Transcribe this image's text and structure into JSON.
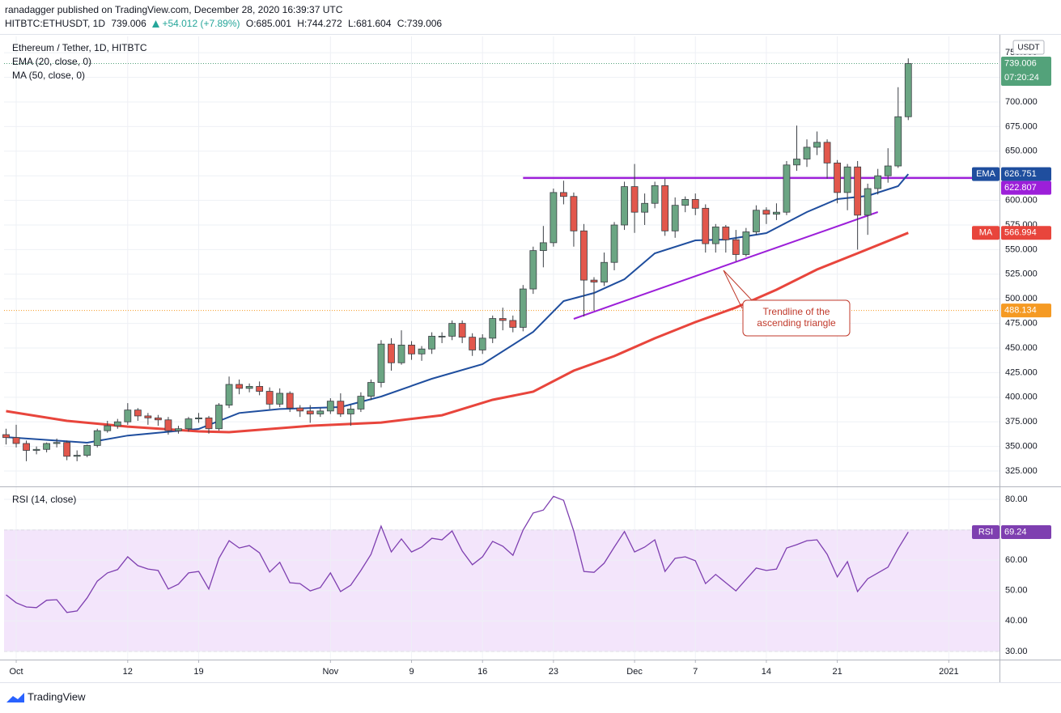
{
  "header": {
    "published": "ranadagger published on TradingView.com, December 28, 2020 16:39:37 UTC",
    "symbol": "HITBTC:ETHUSDT, 1D",
    "change": "+54.012 (+7.89%)",
    "ohlc": [
      "O:685.001",
      "H:744.272",
      "L:681.604",
      "C:739.006"
    ]
  },
  "footer": {
    "brand": "TradingView"
  },
  "chart_data": [
    {
      "type": "candlestick",
      "title": "Ethereum / Tether, 1D, HITBTC",
      "unit": "USDT",
      "countdown": "07:20:24",
      "categories": [
        null,
        null,
        null,
        null,
        null,
        null,
        null,
        null,
        null,
        null,
        null,
        null,
        null,
        null,
        null,
        null,
        null,
        null,
        null,
        null,
        null,
        null,
        null,
        null,
        null,
        null,
        null,
        null,
        null,
        null,
        null,
        null,
        null,
        null,
        null,
        null,
        null,
        null,
        null,
        null,
        null,
        null,
        null,
        null,
        null,
        null,
        null,
        null,
        null,
        null,
        null,
        null,
        null,
        null,
        null,
        null,
        null,
        null,
        null,
        null,
        null,
        null,
        null,
        null,
        null,
        null,
        null,
        null,
        null,
        null,
        null,
        null,
        null,
        null,
        null,
        null,
        null,
        null,
        null,
        null,
        null,
        null,
        null,
        null,
        null,
        null,
        null,
        null,
        null,
        null
      ],
      "open": [
        362,
        359,
        353,
        346,
        347,
        353,
        354,
        340,
        341,
        351,
        366,
        371,
        375,
        387,
        381,
        379,
        377,
        366,
        368,
        378,
        379,
        368,
        392,
        413,
        409,
        411,
        406,
        393,
        404,
        389,
        386,
        383,
        386,
        396,
        383,
        388,
        401,
        415,
        454,
        435,
        453,
        444,
        449,
        462,
        462,
        475,
        461,
        448,
        460,
        480,
        478,
        471,
        510,
        549,
        557,
        608,
        604,
        569,
        519,
        517,
        537,
        575,
        614,
        588,
        597,
        615,
        569,
        595,
        601,
        592,
        556,
        573,
        560,
        545,
        568,
        590,
        586,
        588,
        636,
        642,
        654,
        659,
        638,
        608,
        634,
        585,
        612,
        625,
        635,
        685.001
      ],
      "high": [
        368,
        372,
        356,
        350,
        354,
        358,
        356,
        346,
        352,
        368,
        376,
        378,
        394,
        389,
        384,
        382,
        380,
        371,
        380,
        384,
        381,
        394,
        421,
        418,
        414,
        416,
        410,
        409,
        406,
        392,
        392,
        389,
        399,
        404,
        392,
        405,
        418,
        458,
        460,
        468,
        457,
        452,
        466,
        466,
        478,
        478,
        465,
        464,
        483,
        491,
        483,
        514,
        553,
        574,
        612,
        620,
        608,
        576,
        522,
        547,
        578,
        619,
        637,
        607,
        619,
        622,
        603,
        604,
        607,
        596,
        576,
        575,
        570,
        572,
        595,
        593,
        597,
        640,
        676,
        662,
        670,
        662,
        641,
        637,
        640,
        617,
        632,
        653,
        715,
        744.272
      ],
      "low": [
        352,
        349,
        335,
        342,
        344,
        349,
        336,
        335,
        339,
        349,
        364,
        368,
        372,
        376,
        372,
        371,
        362,
        363,
        365,
        374,
        363,
        366,
        389,
        403,
        405,
        402,
        388,
        390,
        385,
        380,
        374,
        380,
        383,
        380,
        371,
        385,
        397,
        410,
        427,
        433,
        438,
        437,
        444,
        455,
        458,
        455,
        442,
        444,
        455,
        468,
        466,
        467,
        505,
        532,
        553,
        596,
        553,
        482,
        488,
        513,
        529,
        570,
        567,
        575,
        592,
        564,
        562,
        588,
        585,
        547,
        547,
        547,
        538,
        543,
        565,
        576,
        580,
        585,
        630,
        634,
        646,
        622,
        597,
        590,
        550,
        565,
        606,
        618,
        633,
        681.604
      ],
      "close": [
        359,
        353,
        346,
        347,
        353,
        354,
        340,
        341,
        351,
        366,
        371,
        375,
        387,
        381,
        379,
        377,
        366,
        368,
        378,
        379,
        368,
        392,
        413,
        409,
        411,
        406,
        393,
        404,
        389,
        386,
        383,
        386,
        396,
        383,
        388,
        401,
        415,
        454,
        435,
        453,
        444,
        449,
        462,
        462,
        475,
        461,
        448,
        460,
        480,
        478,
        471,
        510,
        549,
        557,
        608,
        604,
        569,
        519,
        517,
        537,
        575,
        614,
        588,
        597,
        615,
        569,
        595,
        601,
        592,
        556,
        573,
        560,
        545,
        568,
        590,
        586,
        588,
        636,
        642,
        654,
        659,
        638,
        608,
        634,
        585,
        612,
        625,
        635,
        685,
        739.006
      ],
      "up_color": "#6ba583",
      "down_color": "#e2574c",
      "last_color": "#53a27a",
      "series": [
        {
          "name": "EMA (20, close, 0)",
          "badge": "EMA",
          "color": "#1f4e9e",
          "x": [
            0,
            8,
            12,
            19,
            23,
            27,
            33,
            37,
            42,
            47,
            52,
            55,
            58,
            61,
            64,
            68,
            71,
            75,
            79,
            82,
            85,
            88,
            89
          ],
          "values": [
            359.5,
            353.8,
            361,
            367.8,
            384,
            388,
            390,
            400.7,
            418.8,
            433.6,
            466.4,
            497.7,
            505.9,
            519.9,
            546.2,
            559.4,
            560.2,
            566.8,
            588.2,
            601.3,
            604.6,
            614.5,
            626.751
          ]
        },
        {
          "name": "MA (50, close, 0)",
          "badge": "MA",
          "color": "#e8453c",
          "x": [
            0,
            6,
            12,
            19,
            22,
            30,
            37,
            43,
            48,
            52,
            56,
            60,
            64,
            68,
            72,
            76,
            80,
            84,
            89
          ],
          "values": [
            385.9,
            376,
            370.2,
            365.3,
            364.5,
            371,
            374.3,
            381.7,
            397.4,
            405.6,
            427,
            441.8,
            459.9,
            476.3,
            491.1,
            509.2,
            529.8,
            546.2,
            566.994
          ]
        }
      ],
      "price_lines": [
        {
          "value": 622.807,
          "color": "#9c1fd9",
          "x_start": 51,
          "style": "solid"
        },
        {
          "value": 488.134,
          "color": "#f59a23",
          "style": "dotted"
        }
      ],
      "trendline": {
        "x": [
          56,
          86
        ],
        "values": [
          479.6,
          588.2
        ],
        "color": "#9c1fd9"
      },
      "annotation": {
        "lines": [
          "Trendline of the",
          "ascending triangle"
        ],
        "color": "#c0392b"
      },
      "xlim": [
        -0.2,
        98
      ],
      "ylim": [
        309.4,
        766.6
      ],
      "yticks": [
        {
          "value": 325,
          "label": "325.000"
        },
        {
          "value": 350,
          "label": "350.000"
        },
        {
          "value": 375,
          "label": "375.000"
        },
        {
          "value": 400,
          "label": "400.000"
        },
        {
          "value": 425,
          "label": "425.000"
        },
        {
          "value": 450,
          "label": "450.000"
        },
        {
          "value": 475,
          "label": "475.000"
        },
        {
          "value": 500,
          "label": "500.000"
        },
        {
          "value": 525,
          "label": "525.000"
        },
        {
          "value": 550,
          "label": "550.000"
        },
        {
          "value": 575,
          "label": "575.000"
        },
        {
          "value": 600,
          "label": "600.000"
        },
        {
          "value": 625,
          "label": "625.000"
        },
        {
          "value": 650,
          "label": "650.000"
        },
        {
          "value": 675,
          "label": "675.000"
        },
        {
          "value": 700,
          "label": "700.000"
        },
        {
          "value": 725,
          "label": "725.000"
        },
        {
          "value": 750,
          "label": "750.000"
        }
      ],
      "grid": true
    },
    {
      "type": "line",
      "title": "RSI (14, close)",
      "series": [
        {
          "name": "RSI",
          "color": "#7e3fb0",
          "values": [
            48.6,
            46,
            44.6,
            44.4,
            46.8,
            47,
            42.8,
            43.3,
            47.6,
            53.1,
            55.8,
            56.9,
            61.1,
            58.2,
            57.1,
            56.6,
            50.5,
            52.1,
            55.8,
            56.3,
            50.5,
            60.6,
            66.4,
            64,
            64.8,
            62.4,
            56.1,
            59.3,
            52.6,
            52.3,
            49.9,
            51,
            55.8,
            49.7,
            51.8,
            56.6,
            61.9,
            71.2,
            62.7,
            67,
            62.7,
            64.3,
            67.2,
            66.7,
            69.6,
            63,
            58.5,
            61.1,
            66.2,
            64.6,
            61.6,
            69.9,
            75.5,
            76.5,
            81,
            79.7,
            69.6,
            56.3,
            56,
            59,
            64.3,
            69.4,
            62.7,
            64.3,
            66.7,
            56.3,
            60.6,
            61.1,
            59.8,
            52.3,
            55.3,
            52.6,
            49.9,
            53.7,
            57.4,
            56.6,
            57.1,
            64,
            65.1,
            66.4,
            66.7,
            61.9,
            54.5,
            59.5,
            49.7,
            53.9,
            55.8,
            57.7,
            63.8,
            69.24
          ]
        }
      ],
      "band": [
        30,
        70
      ],
      "band_color": "#f3e5fb",
      "xlim": [
        -0.2,
        98
      ],
      "ylim": [
        27.3,
        84
      ],
      "yticks": [
        {
          "value": 30,
          "label": "30.00"
        },
        {
          "value": 40,
          "label": "40.00"
        },
        {
          "value": 50,
          "label": "50.00"
        },
        {
          "value": 60,
          "label": "60.00"
        },
        {
          "value": 70,
          "label": "70.00"
        },
        {
          "value": 80,
          "label": "80.00"
        }
      ],
      "xticks": [
        {
          "value": 1,
          "label": "Oct"
        },
        12,
        19,
        {
          "value": 32,
          "label": "Nov"
        },
        {
          "value": 40,
          "label": "9"
        },
        {
          "value": 47,
          "label": "16"
        },
        {
          "value": 54,
          "label": "23"
        },
        {
          "value": 62,
          "label": "Dec"
        },
        {
          "value": 68,
          "label": "7"
        },
        {
          "value": 75,
          "label": "14"
        },
        {
          "value": 82,
          "label": "21"
        },
        {
          "value": 93,
          "label": "2021"
        }
      ],
      "grid": true
    }
  ]
}
